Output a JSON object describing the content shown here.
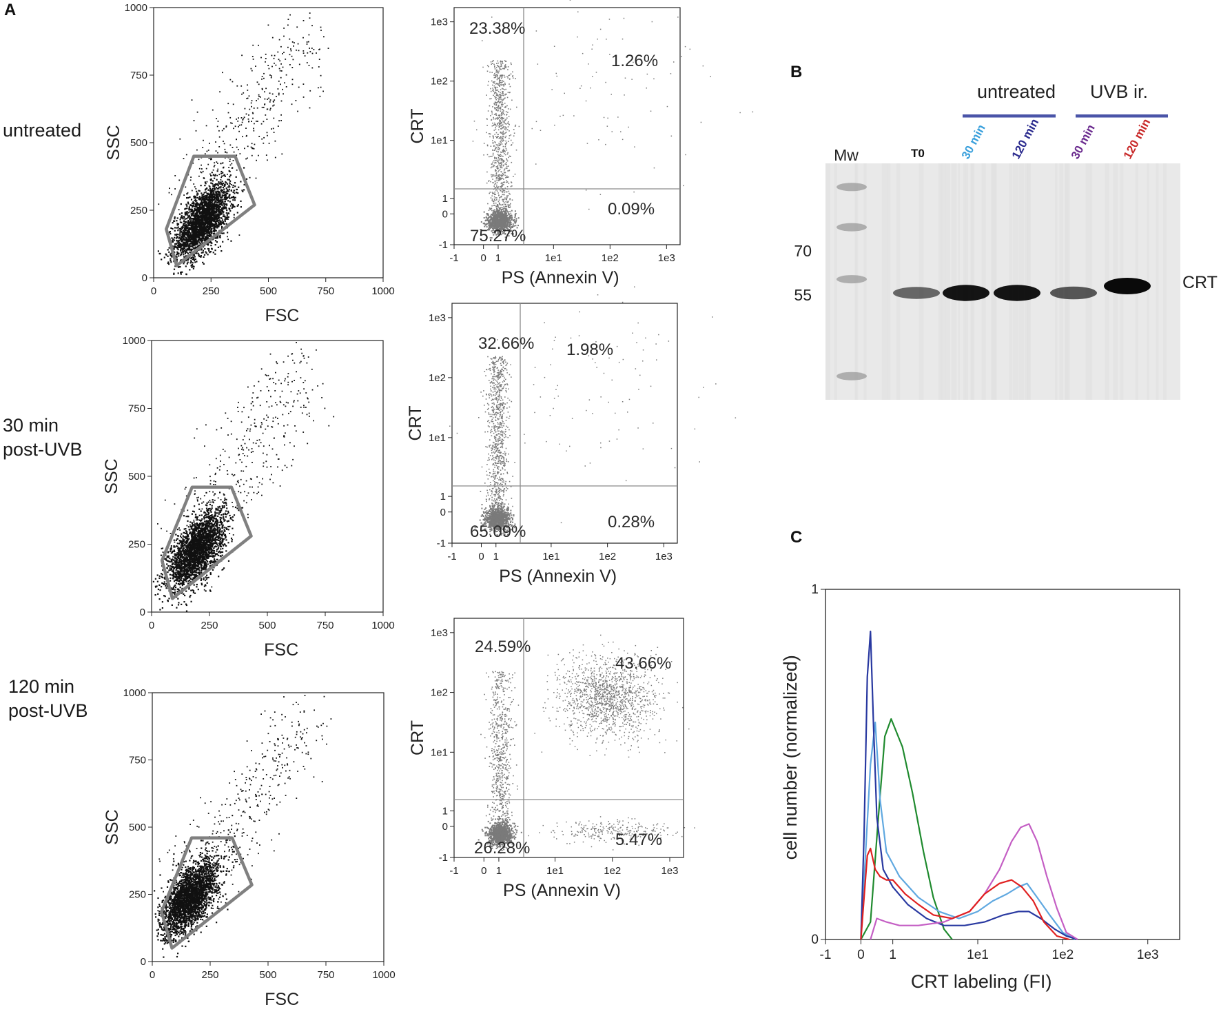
{
  "panels": {
    "a": "A",
    "b": "B",
    "c": "C"
  },
  "row_labels": [
    {
      "lines": [
        "untreated"
      ]
    },
    {
      "lines": [
        "30 min",
        "post-UVB"
      ]
    },
    {
      "lines": [
        "120 min",
        "post-UVB"
      ]
    }
  ],
  "chart_data": [
    {
      "type": "scatter",
      "role": "scatter-plot",
      "title": "untreated",
      "xlabel": "FSC",
      "ylabel": "SSC",
      "xlim": [
        0,
        1000
      ],
      "ylim": [
        0,
        1000
      ],
      "xticks": [
        "0",
        "250",
        "500",
        "750",
        "1000"
      ],
      "yticks": [
        "0",
        "250",
        "500",
        "750",
        "1000"
      ],
      "cluster": {
        "x_center": 210,
        "y_center": 210,
        "density": "high"
      },
      "gate_polygon": [
        [
          55,
          180
        ],
        [
          175,
          450
        ],
        [
          355,
          450
        ],
        [
          440,
          270
        ],
        [
          100,
          45
        ]
      ]
    },
    {
      "type": "scatter",
      "role": "scatter-plot",
      "title": "30 min post-UVB",
      "xlabel": "FSC",
      "ylabel": "SSC",
      "xlim": [
        0,
        1000
      ],
      "ylim": [
        0,
        1000
      ],
      "xticks": [
        "0",
        "250",
        "500",
        "750",
        "1000"
      ],
      "yticks": [
        "0",
        "250",
        "500",
        "750",
        "1000"
      ],
      "cluster": {
        "x_center": 190,
        "y_center": 230,
        "density": "high"
      },
      "gate_polygon": [
        [
          45,
          190
        ],
        [
          175,
          460
        ],
        [
          345,
          460
        ],
        [
          430,
          280
        ],
        [
          90,
          50
        ]
      ]
    },
    {
      "type": "scatter",
      "role": "scatter-plot",
      "title": "120 min post-UVB",
      "xlabel": "FSC",
      "ylabel": "SSC",
      "xlim": [
        0,
        1000
      ],
      "ylim": [
        0,
        1000
      ],
      "xticks": [
        "0",
        "250",
        "500",
        "750",
        "1000"
      ],
      "yticks": [
        "0",
        "250",
        "500",
        "750",
        "1000"
      ],
      "cluster": {
        "x_center": 160,
        "y_center": 240,
        "density": "high"
      },
      "gate_polygon": [
        [
          40,
          185
        ],
        [
          170,
          460
        ],
        [
          345,
          460
        ],
        [
          430,
          285
        ],
        [
          85,
          50
        ]
      ]
    },
    {
      "type": "scatter",
      "role": "quadrant-plot",
      "title": "untreated",
      "xlabel": "PS (Annexin V)",
      "ylabel": "CRT",
      "xticks": [
        "-1",
        "0",
        "1",
        "1e1",
        "1e2",
        "1e3"
      ],
      "yticks": [
        "-1",
        "0",
        "1",
        "1e1",
        "1e2",
        "1e3"
      ],
      "quadrants": {
        "upper_left": "23.38%",
        "upper_right": "1.26%",
        "lower_left": "75.27%",
        "lower_right": "0.09%"
      }
    },
    {
      "type": "scatter",
      "role": "quadrant-plot",
      "title": "30 min post-UVB",
      "xlabel": "PS (Annexin V)",
      "ylabel": "CRT",
      "xticks": [
        "-1",
        "0",
        "1",
        "1e1",
        "1e2",
        "1e3"
      ],
      "yticks": [
        "-1",
        "0",
        "1",
        "1e1",
        "1e2",
        "1e3"
      ],
      "quadrants": {
        "upper_left": "32.66%",
        "upper_right": "1.98%",
        "lower_left": "65.09%",
        "lower_right": "0.28%"
      }
    },
    {
      "type": "scatter",
      "role": "quadrant-plot",
      "title": "120 min post-UVB",
      "xlabel": "PS (Annexin V)",
      "ylabel": "CRT",
      "xticks": [
        "-1",
        "0",
        "1",
        "1e1",
        "1e2",
        "1e3"
      ],
      "yticks": [
        "-1",
        "0",
        "1",
        "1e1",
        "1e2",
        "1e3"
      ],
      "quadrants": {
        "upper_left": "24.59%",
        "upper_right": "43.66%",
        "lower_left": "26.28%",
        "lower_right": "5.47%"
      }
    },
    {
      "type": "line",
      "role": "histogram",
      "xlabel": "CRT labeling (FI)",
      "ylabel": "cell number (normalized)",
      "x_scale": "biexponential",
      "xticks": [
        "-1",
        "0",
        "1",
        "1e1",
        "1e2",
        "1e3"
      ],
      "yticks": [
        "0",
        "1"
      ],
      "ylim": [
        0,
        1
      ],
      "series": [
        {
          "name": "T0",
          "color": "#1f8a2e",
          "x": [
            0.0,
            0.3,
            0.55,
            0.75,
            0.95,
            1.3,
            1.7,
            2.3,
            3.0,
            4.0,
            5.0
          ],
          "y": [
            0.0,
            0.05,
            0.35,
            0.58,
            0.63,
            0.55,
            0.42,
            0.25,
            0.12,
            0.03,
            0.0
          ]
        },
        {
          "name": "30 min untreated",
          "color": "#5fa8e0",
          "x": [
            0.0,
            0.15,
            0.3,
            0.45,
            0.6,
            0.8,
            1.2,
            2.0,
            3.5,
            6.0,
            10.0,
            15.0,
            22.0,
            30.0,
            38.0,
            50.0,
            70.0,
            100.0,
            140.0
          ],
          "y": [
            0.0,
            0.25,
            0.5,
            0.62,
            0.4,
            0.25,
            0.18,
            0.12,
            0.08,
            0.06,
            0.08,
            0.11,
            0.13,
            0.15,
            0.16,
            0.12,
            0.07,
            0.02,
            0.0
          ]
        },
        {
          "name": "120 min untreated",
          "color": "#2838a0",
          "x": [
            0.0,
            0.1,
            0.2,
            0.3,
            0.4,
            0.5,
            0.7,
            1.0,
            1.5,
            2.5,
            4.0,
            7.0,
            12.0,
            20.0,
            30.0,
            40.0,
            55.0,
            80.0,
            110.0,
            150.0
          ],
          "y": [
            0.0,
            0.3,
            0.75,
            0.88,
            0.6,
            0.35,
            0.2,
            0.15,
            0.1,
            0.06,
            0.04,
            0.04,
            0.05,
            0.07,
            0.08,
            0.08,
            0.06,
            0.03,
            0.01,
            0.0
          ]
        },
        {
          "name": "30 min UVB ir.",
          "color": "#c45ec4",
          "x": [
            0.3,
            0.5,
            0.8,
            1.2,
            2.0,
            4.0,
            8.0,
            12.0,
            18.0,
            25.0,
            32.0,
            40.0,
            50.0,
            65.0,
            85.0,
            110.0,
            150.0
          ],
          "y": [
            0.0,
            0.06,
            0.05,
            0.04,
            0.04,
            0.05,
            0.08,
            0.13,
            0.2,
            0.28,
            0.32,
            0.33,
            0.28,
            0.18,
            0.09,
            0.02,
            0.0
          ]
        },
        {
          "name": "120 min UVB ir.",
          "color": "#e02020",
          "x": [
            0.0,
            0.1,
            0.2,
            0.3,
            0.45,
            0.6,
            0.8,
            1.0,
            1.4,
            2.0,
            3.0,
            5.0,
            8.0,
            12.0,
            18.0,
            25.0,
            33.0,
            45.0,
            60.0,
            85.0,
            120.0
          ],
          "y": [
            0.0,
            0.12,
            0.24,
            0.26,
            0.2,
            0.18,
            0.17,
            0.17,
            0.13,
            0.1,
            0.07,
            0.06,
            0.08,
            0.13,
            0.16,
            0.17,
            0.15,
            0.11,
            0.05,
            0.01,
            0.0
          ]
        }
      ]
    }
  ],
  "western_blot": {
    "mw_header": "Mw",
    "marker_values": [
      "70",
      "55"
    ],
    "band_label": "CRT",
    "group_labels": {
      "untreated": "untreated",
      "uvb": "UVB ir."
    },
    "group_bar_color": "#4a54a8",
    "lanes": [
      {
        "label": "T0",
        "color": "#111111",
        "intensity": 0.45
      },
      {
        "label": "30 min",
        "color": "#3aa0dc",
        "intensity": 0.95
      },
      {
        "label": "120 min",
        "color": "#2a2a8e",
        "intensity": 0.95
      },
      {
        "label": "30 min",
        "color": "#6a2a8e",
        "intensity": 0.55
      },
      {
        "label": "120 min",
        "color": "#c82828",
        "intensity": 1.0
      }
    ]
  }
}
